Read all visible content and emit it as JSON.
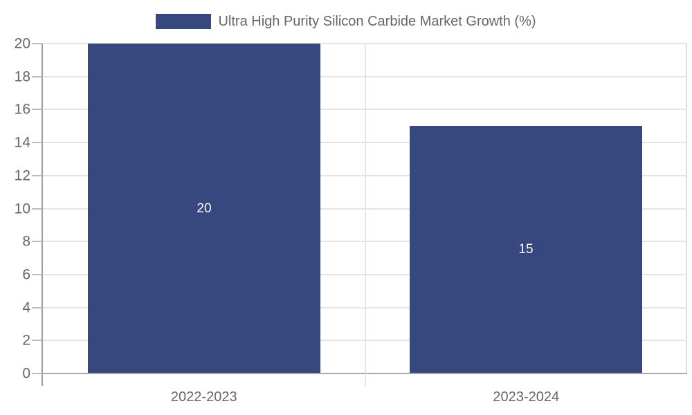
{
  "chart_data": {
    "type": "bar",
    "title": "Ultra High Purity Silicon Carbide Market Growth (%)",
    "categories": [
      "2022-2023",
      "2023-2024"
    ],
    "values": [
      20,
      15
    ],
    "bar_labels": [
      "20",
      "15"
    ],
    "xlabel": "",
    "ylabel": "",
    "ylim": [
      0,
      20
    ],
    "yticks": [
      0,
      2,
      4,
      6,
      8,
      10,
      12,
      14,
      16,
      18,
      20
    ],
    "grid": true,
    "legend": {
      "label": "Ultra High Purity Silicon Carbide Market Growth (%)",
      "position": "top"
    },
    "colors": {
      "bar": "#37487E",
      "bar_label": "#FFFFFF",
      "axis_text": "#666666",
      "legend_text": "#666666",
      "gridline": "#E4E4E4",
      "axis_line": "#9E9E9E",
      "baseline": "#A8A8A8",
      "tick_mark": "#BBBBBB",
      "plot_border": "#DCDCDC",
      "background": "#FFFFFF"
    }
  }
}
